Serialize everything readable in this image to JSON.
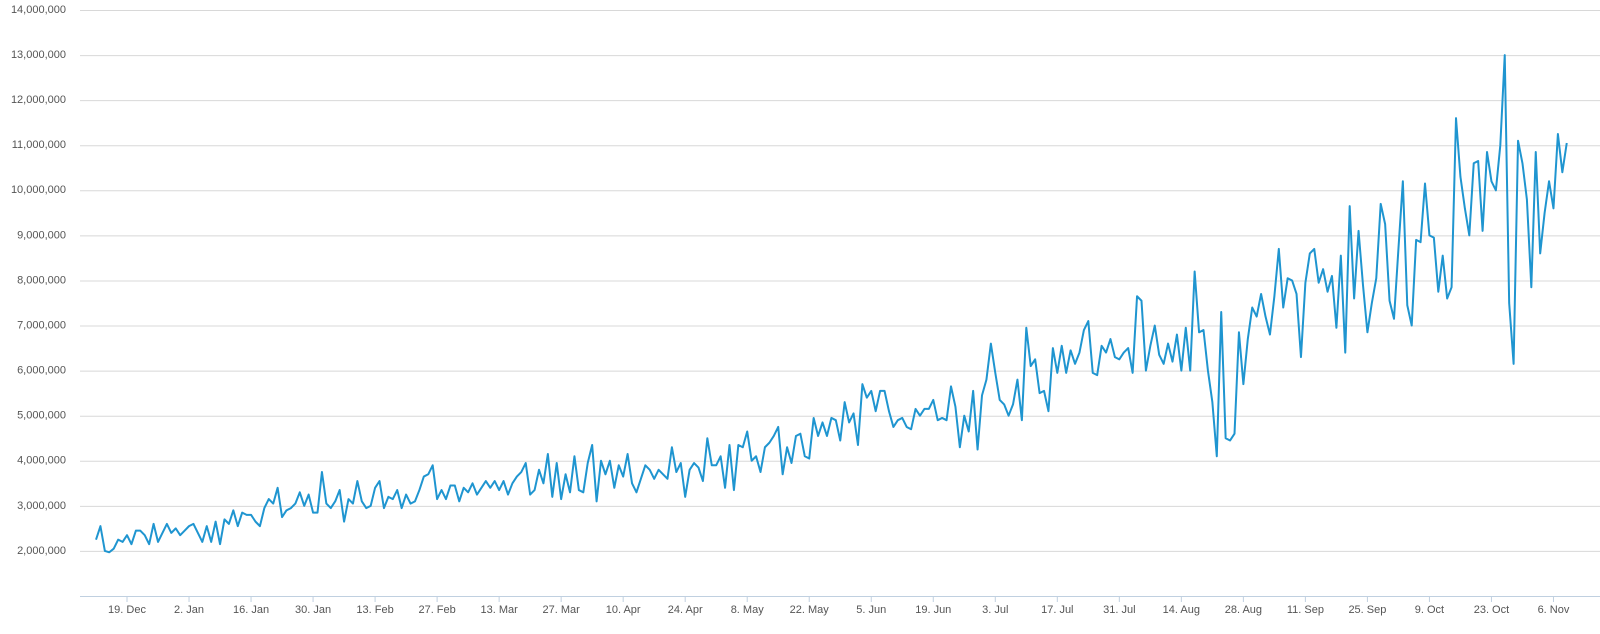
{
  "chart_data": {
    "type": "line",
    "color": "#1f95d0",
    "grid": true,
    "ylim": [
      1000000,
      14000000
    ],
    "yticks": [
      {
        "value": 2000000,
        "label": "2,000,000"
      },
      {
        "value": 3000000,
        "label": "3,000,000"
      },
      {
        "value": 4000000,
        "label": "4,000,000"
      },
      {
        "value": 5000000,
        "label": "5,000,000"
      },
      {
        "value": 6000000,
        "label": "6,000,000"
      },
      {
        "value": 7000000,
        "label": "7,000,000"
      },
      {
        "value": 8000000,
        "label": "8,000,000"
      },
      {
        "value": 9000000,
        "label": "9,000,000"
      },
      {
        "value": 10000000,
        "label": "10,000,000"
      },
      {
        "value": 11000000,
        "label": "11,000,000"
      },
      {
        "value": 12000000,
        "label": "12,000,000"
      },
      {
        "value": 13000000,
        "label": "13,000,000"
      },
      {
        "value": 14000000,
        "label": "14,000,000"
      }
    ],
    "xticks": [
      "19. Dec",
      "2. Jan",
      "16. Jan",
      "30. Jan",
      "13. Feb",
      "27. Feb",
      "13. Mar",
      "27. Mar",
      "10. Apr",
      "24. Apr",
      "8. May",
      "22. May",
      "5. Jun",
      "19. Jun",
      "3. Jul",
      "17. Jul",
      "31. Jul",
      "14. Aug",
      "28. Aug",
      "11. Sep",
      "25. Sep",
      "9. Oct",
      "23. Oct",
      "6. Nov"
    ],
    "x": [
      "12. Dec",
      "13. Dec",
      "14. Dec",
      "15. Dec",
      "16. Dec",
      "17. Dec",
      "18. Dec",
      "19. Dec",
      "20. Dec",
      "21. Dec",
      "22. Dec",
      "23. Dec",
      "24. Dec",
      "25. Dec",
      "26. Dec",
      "27. Dec",
      "28. Dec",
      "29. Dec",
      "30. Dec",
      "31. Dec",
      "1. Jan",
      "2. Jan",
      "3. Jan",
      "4. Jan",
      "5. Jan",
      "6. Jan",
      "7. Jan",
      "8. Jan",
      "9. Jan",
      "10. Jan",
      "11. Jan",
      "12. Jan",
      "13. Jan",
      "14. Jan",
      "15. Jan",
      "16. Jan",
      "17. Jan",
      "18. Jan",
      "19. Jan",
      "20. Jan",
      "21. Jan",
      "22. Jan",
      "23. Jan",
      "24. Jan",
      "25. Jan",
      "26. Jan",
      "27. Jan",
      "28. Jan",
      "29. Jan",
      "30. Jan",
      "31. Jan",
      "1. Feb",
      "2. Feb",
      "3. Feb",
      "4. Feb",
      "5. Feb",
      "6. Feb",
      "7. Feb",
      "8. Feb",
      "9. Feb",
      "10. Feb",
      "11. Feb",
      "12. Feb",
      "13. Feb",
      "14. Feb",
      "15. Feb",
      "16. Feb",
      "17. Feb",
      "18. Feb",
      "19. Feb",
      "20. Feb",
      "21. Feb",
      "22. Feb",
      "23. Feb",
      "24. Feb",
      "25. Feb",
      "26. Feb",
      "27. Feb",
      "28. Feb",
      "1. Mar",
      "2. Mar",
      "3. Mar",
      "4. Mar",
      "5. Mar",
      "6. Mar",
      "7. Mar",
      "8. Mar",
      "9. Mar",
      "10. Mar",
      "11. Mar",
      "12. Mar",
      "13. Mar",
      "14. Mar",
      "15. Mar",
      "16. Mar",
      "17. Mar",
      "18. Mar",
      "19. Mar",
      "20. Mar",
      "21. Mar",
      "22. Mar",
      "23. Mar",
      "24. Mar",
      "25. Mar",
      "26. Mar",
      "27. Mar",
      "28. Mar",
      "29. Mar",
      "30. Mar",
      "31. Mar",
      "1. Apr",
      "2. Apr",
      "3. Apr",
      "4. Apr",
      "5. Apr",
      "6. Apr",
      "7. Apr",
      "8. Apr",
      "9. Apr",
      "10. Apr",
      "11. Apr",
      "12. Apr",
      "13. Apr",
      "14. Apr",
      "15. Apr",
      "16. Apr",
      "17. Apr",
      "18. Apr",
      "19. Apr",
      "20. Apr",
      "21. Apr",
      "22. Apr",
      "23. Apr",
      "24. Apr",
      "25. Apr",
      "26. Apr",
      "27. Apr",
      "28. Apr",
      "29. Apr",
      "30. Apr",
      "1. May",
      "2. May",
      "3. May",
      "4. May",
      "5. May",
      "6. May",
      "7. May",
      "8. May",
      "9. May",
      "10. May",
      "11. May",
      "12. May",
      "13. May",
      "14. May",
      "15. May",
      "16. May",
      "17. May",
      "18. May",
      "19. May",
      "20. May",
      "21. May",
      "22. May",
      "23. May",
      "24. May",
      "25. May",
      "26. May",
      "27. May",
      "28. May",
      "29. May",
      "30. May",
      "31. May",
      "1. Jun",
      "2. Jun",
      "3. Jun",
      "4. Jun",
      "5. Jun",
      "6. Jun",
      "7. Jun",
      "8. Jun",
      "9. Jun",
      "10. Jun",
      "11. Jun",
      "12. Jun",
      "13. Jun",
      "14. Jun",
      "15. Jun",
      "16. Jun",
      "17. Jun",
      "18. Jun",
      "19. Jun",
      "20. Jun",
      "21. Jun",
      "22. Jun",
      "23. Jun",
      "24. Jun",
      "25. Jun",
      "26. Jun",
      "27. Jun",
      "28. Jun",
      "29. Jun",
      "30. Jun",
      "1. Jul",
      "2. Jul",
      "3. Jul",
      "4. Jul",
      "5. Jul",
      "6. Jul",
      "7. Jul",
      "8. Jul",
      "9. Jul",
      "10. Jul",
      "11. Jul",
      "12. Jul",
      "13. Jul",
      "14. Jul",
      "15. Jul",
      "16. Jul",
      "17. Jul",
      "18. Jul",
      "19. Jul",
      "20. Jul",
      "21. Jul",
      "22. Jul",
      "23. Jul",
      "24. Jul",
      "25. Jul",
      "26. Jul",
      "27. Jul",
      "28. Jul",
      "29. Jul",
      "30. Jul",
      "31. Jul",
      "1. Aug",
      "2. Aug",
      "3. Aug",
      "4. Aug",
      "5. Aug",
      "6. Aug",
      "7. Aug",
      "8. Aug",
      "9. Aug",
      "10. Aug",
      "11. Aug",
      "12. Aug",
      "13. Aug",
      "14. Aug",
      "15. Aug",
      "16. Aug",
      "17. Aug",
      "18. Aug",
      "19. Aug",
      "20. Aug",
      "21. Aug",
      "22. Aug",
      "23. Aug",
      "24. Aug",
      "25. Aug",
      "26. Aug",
      "27. Aug",
      "28. Aug",
      "29. Aug",
      "30. Aug",
      "31. Aug",
      "1. Sep",
      "2. Sep",
      "3. Sep",
      "4. Sep",
      "5. Sep",
      "6. Sep",
      "7. Sep",
      "8. Sep",
      "9. Sep",
      "10. Sep",
      "11. Sep",
      "12. Sep",
      "13. Sep",
      "14. Sep",
      "15. Sep",
      "16. Sep",
      "17. Sep",
      "18. Sep",
      "19. Sep",
      "20. Sep",
      "21. Sep",
      "22. Sep",
      "23. Sep",
      "24. Sep",
      "25. Sep",
      "26. Sep",
      "27. Sep",
      "28. Sep",
      "29. Sep",
      "30. Sep",
      "1. Oct",
      "2. Oct",
      "3. Oct",
      "4. Oct",
      "5. Oct",
      "6. Oct",
      "7. Oct",
      "8. Oct",
      "9. Oct",
      "10. Oct",
      "11. Oct",
      "12. Oct",
      "13. Oct",
      "14. Oct",
      "15. Oct",
      "16. Oct",
      "17. Oct",
      "18. Oct",
      "19. Oct",
      "20. Oct",
      "21. Oct",
      "22. Oct",
      "23. Oct",
      "24. Oct",
      "25. Oct",
      "26. Oct",
      "27. Oct",
      "28. Oct",
      "29. Oct",
      "30. Oct",
      "31. Oct",
      "1. Nov",
      "2. Nov",
      "3. Nov",
      "4. Nov",
      "5. Nov",
      "6. Nov",
      "7. Nov",
      "8. Nov",
      "9. Nov"
    ],
    "values": [
      2250000,
      2550000,
      2000000,
      1970000,
      2050000,
      2250000,
      2200000,
      2350000,
      2150000,
      2450000,
      2450000,
      2350000,
      2150000,
      2600000,
      2200000,
      2400000,
      2600000,
      2400000,
      2500000,
      2350000,
      2450000,
      2550000,
      2600000,
      2400000,
      2200000,
      2550000,
      2200000,
      2650000,
      2150000,
      2700000,
      2600000,
      2900000,
      2550000,
      2850000,
      2800000,
      2800000,
      2650000,
      2550000,
      2950000,
      3150000,
      3050000,
      3400000,
      2750000,
      2900000,
      2950000,
      3050000,
      3300000,
      3000000,
      3250000,
      2850000,
      2850000,
      3750000,
      3050000,
      2950000,
      3100000,
      3350000,
      2650000,
      3150000,
      3050000,
      3550000,
      3100000,
      2950000,
      3000000,
      3400000,
      3550000,
      2950000,
      3200000,
      3150000,
      3350000,
      2950000,
      3250000,
      3050000,
      3100000,
      3350000,
      3650000,
      3700000,
      3900000,
      3150000,
      3350000,
      3150000,
      3450000,
      3450000,
      3100000,
      3400000,
      3300000,
      3500000,
      3250000,
      3400000,
      3550000,
      3400000,
      3550000,
      3350000,
      3550000,
      3250000,
      3500000,
      3650000,
      3750000,
      3950000,
      3250000,
      3350000,
      3800000,
      3500000,
      4150000,
      3200000,
      3950000,
      3150000,
      3700000,
      3300000,
      4100000,
      3350000,
      3300000,
      3950000,
      4350000,
      3100000,
      4000000,
      3700000,
      4000000,
      3400000,
      3900000,
      3650000,
      4150000,
      3500000,
      3300000,
      3600000,
      3900000,
      3800000,
      3600000,
      3800000,
      3700000,
      3600000,
      4300000,
      3750000,
      3950000,
      3200000,
      3800000,
      3950000,
      3850000,
      3550000,
      4500000,
      3900000,
      3900000,
      4100000,
      3400000,
      4350000,
      3350000,
      4350000,
      4300000,
      4650000,
      4000000,
      4100000,
      3750000,
      4300000,
      4400000,
      4550000,
      4750000,
      3700000,
      4300000,
      3950000,
      4550000,
      4600000,
      4100000,
      4050000,
      4950000,
      4550000,
      4850000,
      4550000,
      4950000,
      4900000,
      4450000,
      5300000,
      4850000,
      5050000,
      4350000,
      5700000,
      5400000,
      5550000,
      5100000,
      5550000,
      5550000,
      5100000,
      4750000,
      4900000,
      4950000,
      4750000,
      4700000,
      5150000,
      5000000,
      5150000,
      5150000,
      5350000,
      4900000,
      4950000,
      4900000,
      5650000,
      5200000,
      4300000,
      5000000,
      4650000,
      5550000,
      4250000,
      5450000,
      5800000,
      6600000,
      5950000,
      5350000,
      5250000,
      5000000,
      5250000,
      5800000,
      4900000,
      6950000,
      6100000,
      6250000,
      5500000,
      5550000,
      5100000,
      6500000,
      5950000,
      6550000,
      5950000,
      6450000,
      6150000,
      6400000,
      6900000,
      7100000,
      5950000,
      5900000,
      6550000,
      6400000,
      6700000,
      6300000,
      6250000,
      6400000,
      6500000,
      5950000,
      7650000,
      7550000,
      6000000,
      6550000,
      7000000,
      6350000,
      6150000,
      6600000,
      6200000,
      6800000,
      6000000,
      6950000,
      6000000,
      8200000,
      6850000,
      6900000,
      6000000,
      5300000,
      4100000,
      7300000,
      4500000,
      4450000,
      4600000,
      6850000,
      5700000,
      6700000,
      7400000,
      7200000,
      7700000,
      7200000,
      6800000,
      7650000,
      8700000,
      7400000,
      8050000,
      8000000,
      7700000,
      6300000,
      7950000,
      8600000,
      8700000,
      7950000,
      8250000,
      7750000,
      8100000,
      6950000,
      8550000,
      6400000,
      9650000,
      7600000,
      9100000,
      7900000,
      6850000,
      7500000,
      8050000,
      9700000,
      9250000,
      7550000,
      7150000,
      8700000,
      10200000,
      7450000,
      7000000,
      8900000,
      8850000,
      10150000,
      9000000,
      8950000,
      7750000,
      8550000,
      7600000,
      7850000,
      11600000,
      10300000,
      9600000,
      9000000,
      10600000,
      10650000,
      9100000,
      10850000,
      10200000,
      10000000,
      11000000,
      13000000,
      7500000,
      6150000,
      11100000,
      10600000,
      9800000,
      7850000,
      10850000,
      8600000,
      9500000,
      10200000,
      9600000,
      11250000,
      10400000,
      11050000
    ]
  }
}
